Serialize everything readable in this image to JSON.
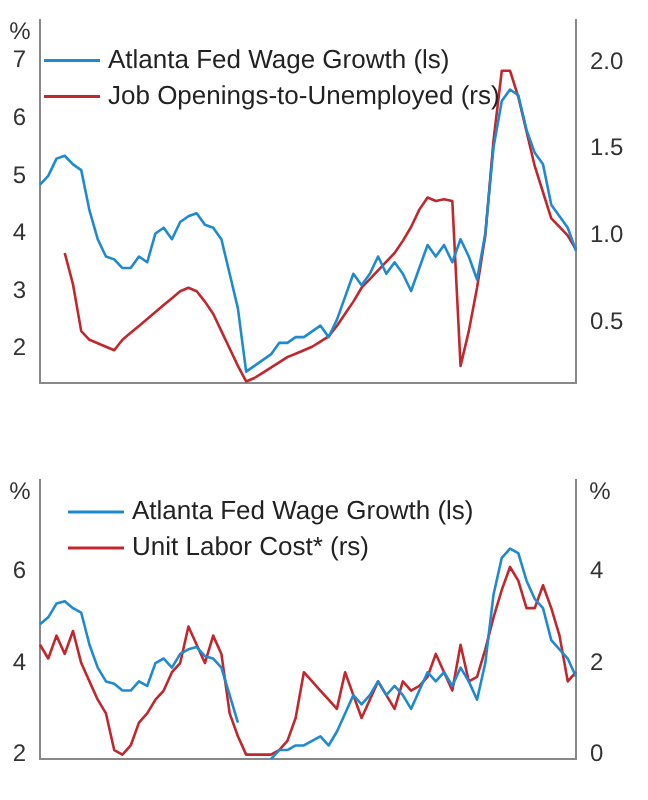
{
  "chart_data": [
    {
      "type": "line",
      "ylabel": "%",
      "categories": [
        null,
        null,
        null,
        null,
        null,
        null,
        null,
        null,
        null,
        null,
        null,
        null,
        null,
        null,
        null,
        null,
        null,
        null,
        null,
        null,
        null,
        null,
        null,
        null,
        null,
        null,
        null,
        null,
        null,
        null,
        null,
        null,
        null,
        null,
        null,
        null,
        null,
        null,
        null,
        null,
        null,
        null,
        null,
        null,
        null,
        null,
        null,
        null,
        null,
        null,
        null,
        null,
        null,
        null,
        null,
        null,
        null,
        null,
        null,
        null,
        null,
        null,
        null,
        null,
        null,
        null
      ],
      "series": [
        {
          "name": "Atlanta Fed Wage Growth (ls)",
          "color": "#1f8ad0",
          "values": [
            4.85,
            5.0,
            5.3,
            5.35,
            5.2,
            5.1,
            4.4,
            3.9,
            3.6,
            3.55,
            3.4,
            3.4,
            3.6,
            3.5,
            4.0,
            4.1,
            3.9,
            4.2,
            4.3,
            4.35,
            4.15,
            4.1,
            3.9,
            3.3,
            2.7,
            1.6,
            1.7,
            1.8,
            1.9,
            2.1,
            2.1,
            2.2,
            2.2,
            2.3,
            2.4,
            2.2,
            2.5,
            2.9,
            3.3,
            3.1,
            3.3,
            3.6,
            3.3,
            3.5,
            3.3,
            3.0,
            3.4,
            3.8,
            3.6,
            3.8,
            3.5,
            3.9,
            3.6,
            3.2,
            4.0,
            5.5,
            6.3,
            6.5,
            6.4,
            5.8,
            5.4,
            5.2,
            4.5,
            4.3,
            4.1,
            3.7
          ]
        },
        {
          "name": "Job Openings-to-Unemployed (rs)",
          "color": "#c0282d",
          "axis": "y2",
          "values": [
            null,
            null,
            null,
            0.9,
            0.72,
            0.45,
            0.4,
            0.38,
            0.36,
            0.34,
            0.4,
            0.44,
            0.48,
            0.52,
            0.56,
            0.6,
            0.64,
            0.68,
            0.7,
            0.68,
            0.62,
            0.55,
            0.45,
            0.35,
            0.25,
            0.16,
            0.18,
            0.21,
            0.24,
            0.27,
            0.3,
            0.32,
            0.34,
            0.36,
            0.39,
            0.42,
            0.48,
            0.55,
            0.62,
            0.7,
            0.75,
            0.8,
            0.85,
            0.9,
            0.97,
            1.05,
            1.15,
            1.22,
            1.2,
            1.21,
            1.2,
            0.25,
            0.45,
            0.7,
            1.0,
            1.55,
            1.95,
            1.95,
            1.8,
            1.6,
            1.4,
            1.25,
            1.1,
            1.05,
            1.0,
            0.92
          ]
        }
      ],
      "ylim": [
        1.4,
        7.7
      ],
      "yticks": [
        2,
        3,
        4,
        5,
        6,
        7
      ],
      "y2lim": [
        0.15,
        2.24
      ],
      "y2ticks": [
        0.5,
        {
          "value": 1,
          "label": "1.0"
        },
        1.5,
        {
          "value": 2,
          "label": "2.0"
        }
      ],
      "legend": "top left"
    },
    {
      "type": "line",
      "ylabel": "%",
      "y2label": "%",
      "categories": [
        null,
        null,
        null,
        null,
        null,
        null,
        null,
        null,
        null,
        null,
        null,
        null,
        null,
        null,
        null,
        null,
        null,
        null,
        null,
        null,
        null,
        null,
        null,
        null,
        null,
        null,
        null,
        null,
        null,
        null,
        null,
        null,
        null,
        null,
        null,
        null,
        null,
        null,
        null,
        null,
        null,
        null,
        null,
        null,
        null,
        null,
        null,
        null,
        null,
        null,
        null,
        null,
        null,
        null,
        null,
        null,
        null,
        null,
        null,
        null,
        null,
        null,
        null,
        null,
        null,
        null
      ],
      "series": [
        {
          "name": "Atlanta Fed Wage Growth (ls)",
          "color": "#1f8ad0",
          "values": [
            4.85,
            5.0,
            5.3,
            5.35,
            5.2,
            5.1,
            4.4,
            3.9,
            3.6,
            3.55,
            3.4,
            3.4,
            3.6,
            3.5,
            4.0,
            4.1,
            3.9,
            4.2,
            4.3,
            4.35,
            4.15,
            4.1,
            3.9,
            3.3,
            2.7,
            null,
            null,
            null,
            1.9,
            2.1,
            2.1,
            2.2,
            2.2,
            2.3,
            2.4,
            2.2,
            2.5,
            2.9,
            3.3,
            3.1,
            3.3,
            3.6,
            3.3,
            3.5,
            3.3,
            3.0,
            3.4,
            3.8,
            3.6,
            3.8,
            3.5,
            3.9,
            3.6,
            3.2,
            4.0,
            5.5,
            6.3,
            6.5,
            6.4,
            5.8,
            5.4,
            5.2,
            4.5,
            4.3,
            4.1,
            3.7
          ]
        },
        {
          "name": "Unit Labor Cost* (rs)",
          "color": "#c0282d",
          "axis": "y2",
          "values": [
            2.4,
            2.1,
            2.6,
            2.2,
            2.7,
            2.0,
            1.6,
            1.2,
            0.9,
            0.1,
            0.0,
            0.2,
            0.7,
            0.9,
            1.2,
            1.4,
            1.8,
            2.0,
            2.8,
            2.4,
            2.0,
            2.6,
            2.2,
            0.9,
            0.4,
            0.0,
            0.0,
            0.0,
            0.0,
            0.1,
            0.3,
            0.8,
            1.8,
            1.6,
            1.4,
            1.2,
            1.0,
            1.8,
            1.3,
            0.8,
            1.2,
            1.6,
            1.3,
            1.0,
            1.6,
            1.4,
            1.5,
            1.7,
            2.2,
            1.8,
            1.4,
            2.4,
            1.6,
            1.7,
            2.3,
            3.0,
            3.6,
            4.1,
            3.8,
            3.2,
            3.2,
            3.7,
            3.2,
            2.6,
            1.6,
            1.8
          ]
        }
      ],
      "ylim": [
        1.9,
        8.0
      ],
      "yticks": [
        2,
        4,
        6
      ],
      "y2lim": [
        -0.1,
        6.0
      ],
      "y2ticks": [
        0,
        2,
        4
      ],
      "legend": "top left"
    }
  ]
}
